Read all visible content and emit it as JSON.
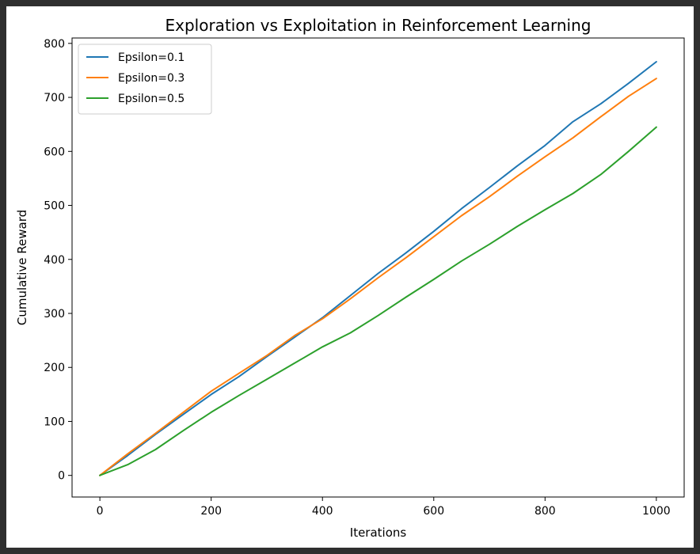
{
  "chart_data": {
    "type": "line",
    "title": "Exploration vs Exploitation in Reinforcement Learning",
    "xlabel": "Iterations",
    "ylabel": "Cumulative Reward",
    "xlim": [
      -50,
      1050
    ],
    "ylim": [
      -40,
      810
    ],
    "xticks": [
      0,
      200,
      400,
      600,
      800,
      1000
    ],
    "yticks": [
      0,
      100,
      200,
      300,
      400,
      500,
      600,
      700,
      800
    ],
    "grid": false,
    "legend_position": "top-left",
    "x": [
      0,
      50,
      100,
      150,
      200,
      250,
      300,
      350,
      400,
      450,
      500,
      550,
      600,
      650,
      700,
      750,
      800,
      850,
      900,
      950,
      1000
    ],
    "series": [
      {
        "name": "Epsilon=0.1",
        "color": "#1f77b4",
        "values": [
          0,
          37,
          76,
          113,
          150,
          183,
          220,
          256,
          292,
          333,
          374,
          412,
          452,
          494,
          533,
          573,
          611,
          655,
          688,
          726,
          766
        ]
      },
      {
        "name": "Epsilon=0.3",
        "color": "#ff7f0e",
        "values": [
          0,
          40,
          78,
          117,
          156,
          189,
          222,
          259,
          290,
          327,
          366,
          403,
          442,
          481,
          516,
          554,
          590,
          625,
          664,
          702,
          735
        ]
      },
      {
        "name": "Epsilon=0.5",
        "color": "#2ca02c",
        "values": [
          0,
          20,
          48,
          83,
          117,
          148,
          178,
          208,
          238,
          264,
          296,
          330,
          363,
          397,
          428,
          461,
          492,
          522,
          557,
          600,
          645
        ]
      }
    ]
  }
}
